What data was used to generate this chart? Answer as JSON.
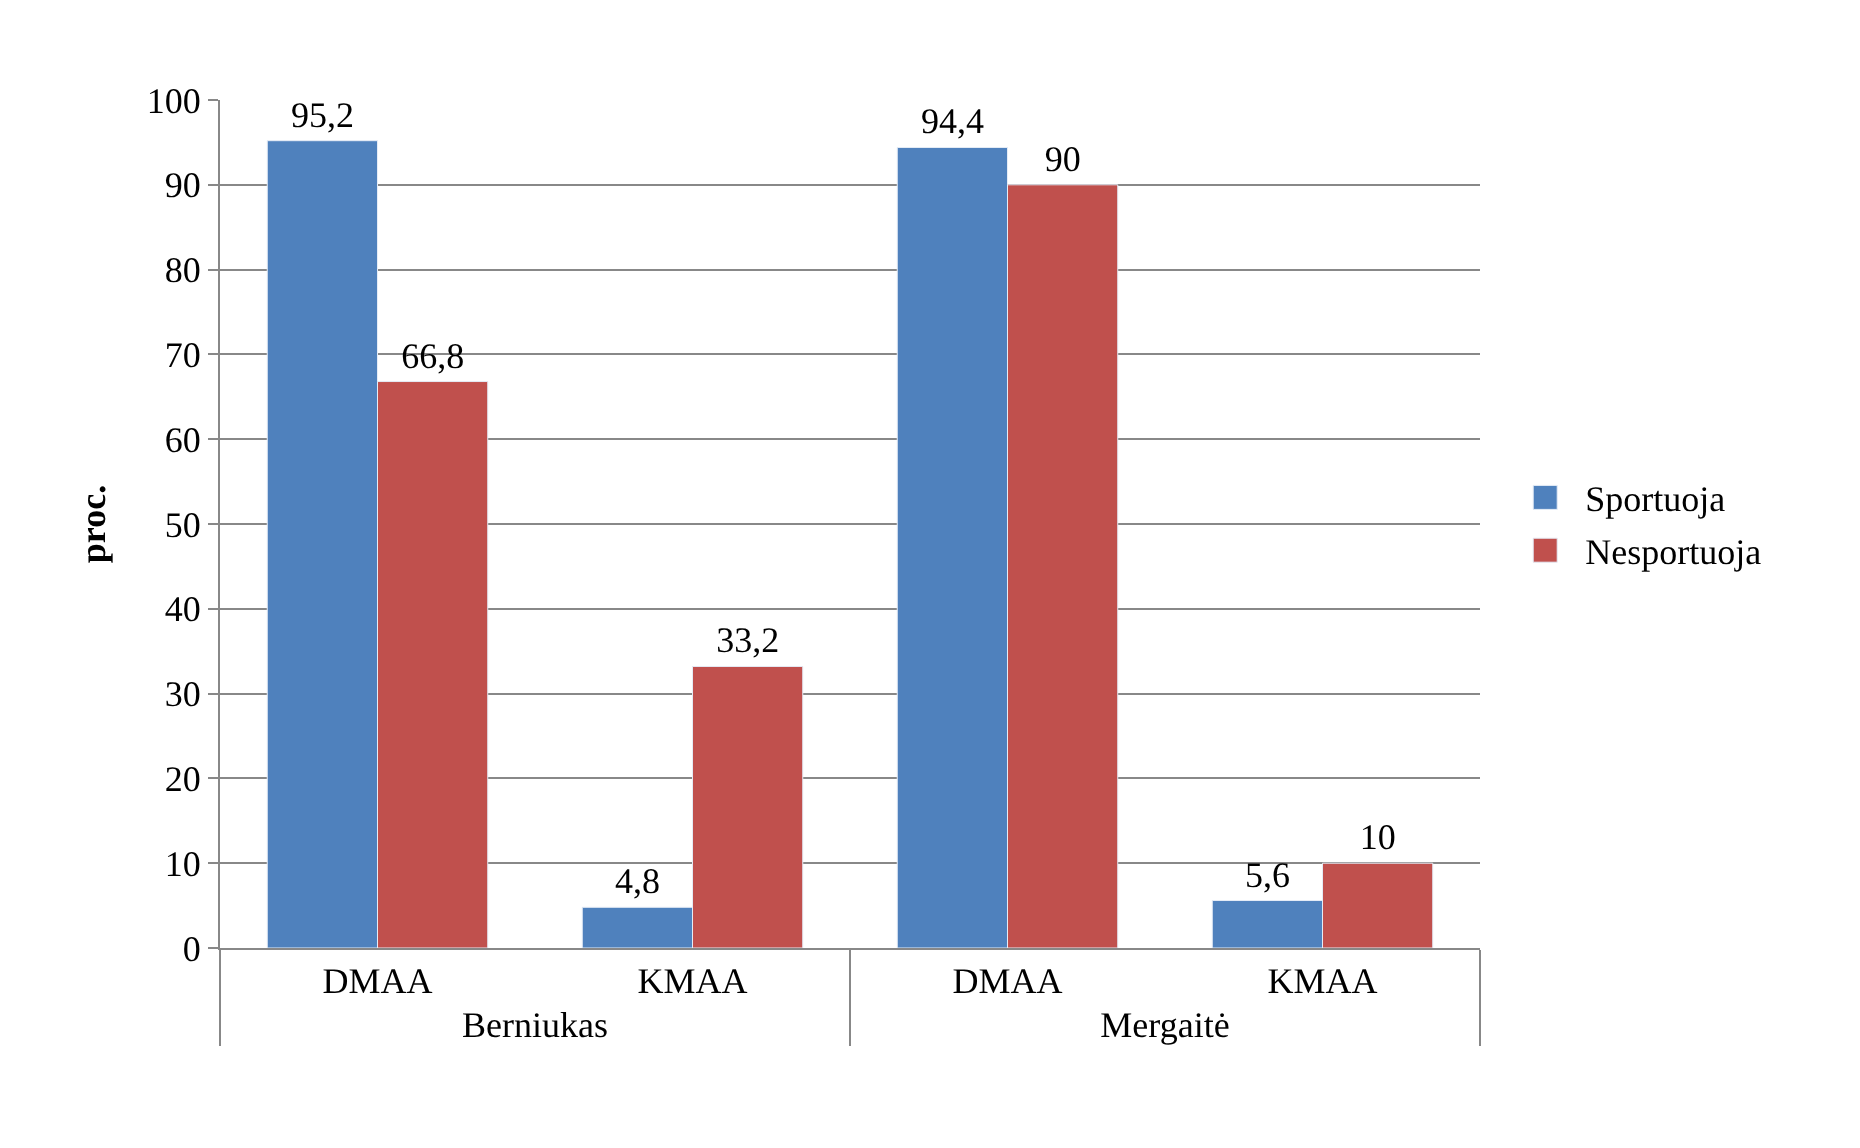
{
  "chart_data": {
    "type": "bar",
    "ylabel": "proc.",
    "categories": [
      "DMAA",
      "KMAA",
      "DMAA",
      "KMAA"
    ],
    "annotations": [
      "Berniukas",
      "Mergaitė"
    ],
    "series": [
      {
        "name": "Sportuoja",
        "color": "#4f81bd",
        "values": [
          95.2,
          4.8,
          94.4,
          5.6
        ],
        "value_labels": [
          "95,2",
          "4,8",
          "94,4",
          "5,6"
        ]
      },
      {
        "name": "Nesportuoja",
        "color": "#c0504d",
        "values": [
          66.8,
          33.2,
          90,
          10
        ],
        "value_labels": [
          "66,8",
          "33,2",
          "90",
          "10"
        ]
      }
    ],
    "ylim": [
      0,
      100
    ],
    "yticks": [
      0,
      10,
      20,
      30,
      40,
      50,
      60,
      70,
      80,
      90,
      100
    ],
    "grid": "y",
    "legend": "right"
  }
}
